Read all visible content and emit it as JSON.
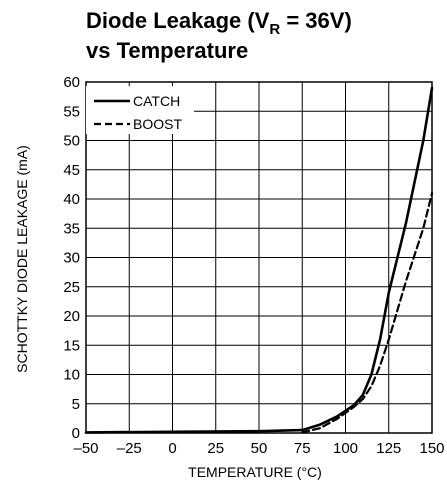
{
  "chart_data": {
    "type": "line",
    "title_line1_main": "Diode Leakage (V",
    "title_line1_sub": "R",
    "title_line1_tail": " = 36V)",
    "title_line2": "vs Temperature",
    "xlabel": "TEMPERATURE (°C)",
    "ylabel": "SCHOTTKY DIODE LEAKAGE (mA)",
    "xlim": [
      -50,
      150
    ],
    "ylim": [
      0,
      60
    ],
    "x_ticks": [
      "–50",
      "–25",
      "0",
      "25",
      "50",
      "75",
      "100",
      "125",
      "150"
    ],
    "y_ticks": [
      "0",
      "5",
      "10",
      "15",
      "20",
      "25",
      "30",
      "35",
      "40",
      "45",
      "50",
      "55",
      "60"
    ],
    "grid": true,
    "legend_position": "top-left",
    "series": [
      {
        "name": "CATCH",
        "style": "solid",
        "color": "#000000",
        "points": [
          [
            -50,
            0.1
          ],
          [
            0,
            0.2
          ],
          [
            50,
            0.3
          ],
          [
            75,
            0.5
          ],
          [
            85,
            1.4
          ],
          [
            95,
            2.8
          ],
          [
            105,
            4.8
          ],
          [
            110,
            6.5
          ],
          [
            115,
            10
          ],
          [
            120,
            16
          ],
          [
            125,
            24
          ],
          [
            135,
            36
          ],
          [
            145,
            50
          ],
          [
            150,
            59
          ]
        ]
      },
      {
        "name": "BOOST",
        "style": "dashed",
        "color": "#000000",
        "points": [
          [
            75,
            0.1
          ],
          [
            85,
            0.8
          ],
          [
            95,
            2.4
          ],
          [
            105,
            4.5
          ],
          [
            110,
            5.8
          ],
          [
            115,
            8
          ],
          [
            120,
            11.5
          ],
          [
            125,
            16
          ],
          [
            135,
            26
          ],
          [
            145,
            35
          ],
          [
            150,
            41
          ]
        ]
      }
    ]
  }
}
